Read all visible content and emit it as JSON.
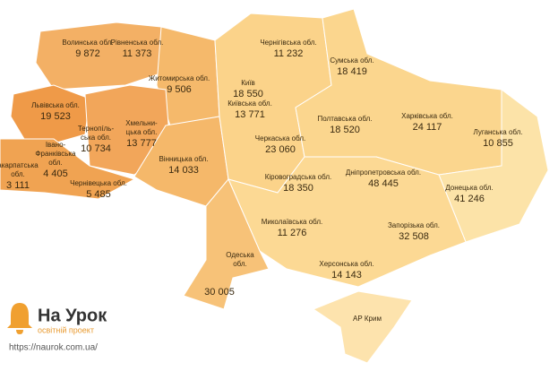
{
  "regions": [
    {
      "lines": [
        "Волинська обл."
      ],
      "value": "9 872"
    },
    {
      "lines": [
        "Рівненська обл."
      ],
      "value": "11 373"
    },
    {
      "lines": [
        "Житомирська обл."
      ],
      "value": "9 506"
    },
    {
      "lines": [
        "Львівська обл."
      ],
      "value": "19 523"
    },
    {
      "lines": [
        "Тернопíль-",
        "ська обл."
      ],
      "value": "10 734"
    },
    {
      "lines": [
        "Хмельни-",
        "цька обл."
      ],
      "value": "13 777"
    },
    {
      "lines": [
        "Івано-",
        "Франківська",
        "обл."
      ],
      "value": "4 405"
    },
    {
      "lines": [
        "акарпатська",
        "обл."
      ],
      "value": "3 111"
    },
    {
      "lines": [
        "Чернівецька обл."
      ],
      "value": "5 485"
    },
    {
      "lines": [
        "Вінницька обл."
      ],
      "value": "14 033"
    },
    {
      "lines": [
        "Чернігівська обл."
      ],
      "value": "11 232"
    },
    {
      "lines": [
        "Сумська обл."
      ],
      "value": "18 419"
    },
    {
      "lines": [
        "Київ"
      ],
      "value": "18 550"
    },
    {
      "lines": [
        "Київська обл."
      ],
      "value": "13 771"
    },
    {
      "lines": [
        "Полтавська обл."
      ],
      "value": "18 520"
    },
    {
      "lines": [
        "Харківська обл."
      ],
      "value": "24 117"
    },
    {
      "lines": [
        "Луганська обл."
      ],
      "value": "10 855"
    },
    {
      "lines": [
        "Черкаська обл."
      ],
      "value": "23 060"
    },
    {
      "lines": [
        "Кіровоградська обл."
      ],
      "value": "18 350"
    },
    {
      "lines": [
        "Дніпропетровська обл."
      ],
      "value": "48 445"
    },
    {
      "lines": [
        "Донецька обл."
      ],
      "value": "41 246"
    },
    {
      "lines": [
        "Миколаївська обл."
      ],
      "value": "11 276"
    },
    {
      "lines": [
        "Запорізька обл."
      ],
      "value": "32 508"
    },
    {
      "lines": [
        "Одеська",
        "обл."
      ],
      "value": "30 005"
    },
    {
      "lines": [
        "Херсонська обл."
      ],
      "value": "14 143"
    },
    {
      "lines": [
        "АР Крим"
      ]
    }
  ],
  "logo": {
    "name": "На Урок",
    "tagline": "освітній проект",
    "url": "https://naurok.com.ua/"
  }
}
